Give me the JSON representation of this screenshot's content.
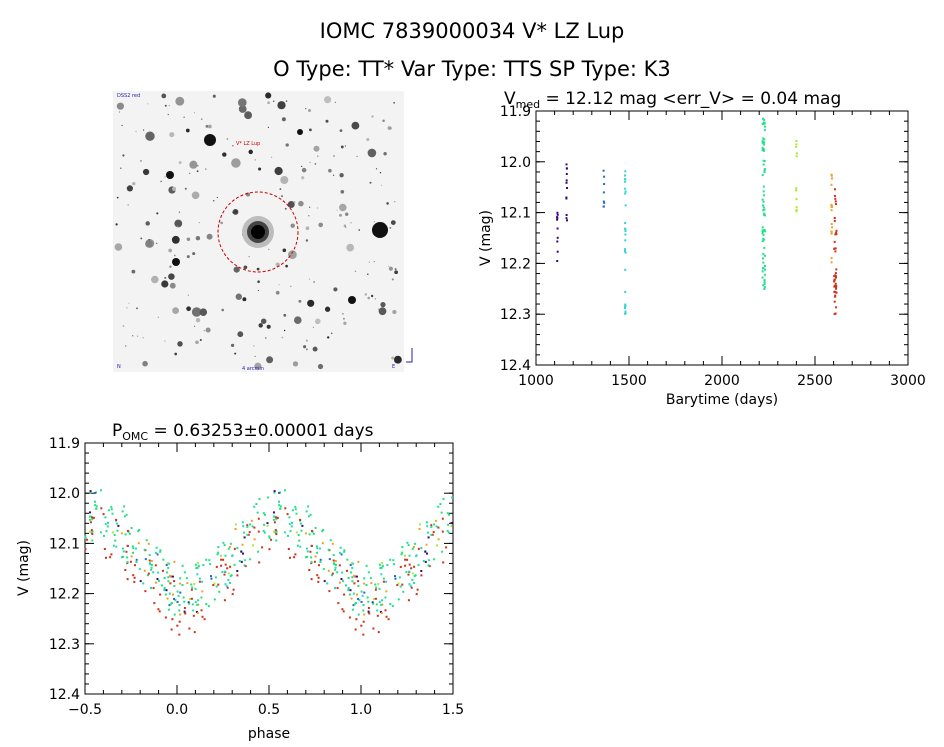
{
  "header": {
    "line1": "IOMC 7839000034   V* LZ Lup",
    "line2": "O Type: TT*  Var Type: TTS  SP Type: K3"
  },
  "sky_image": {
    "label_top_left": "DSS2 red",
    "label_target": "V* LZ Lup",
    "label_bottom_left": "N",
    "label_bottom_center": "4 arcmin",
    "label_bottom_right": "E",
    "circle_color": "#cc0000"
  },
  "series_colors": [
    "#3a0a7a",
    "#2a66c8",
    "#30d4d4",
    "#22e08a",
    "#a6ec30",
    "#f0a020",
    "#d03018"
  ],
  "chart_data": [
    {
      "type": "scatter",
      "title": "V",
      "title_sub": "med",
      "title_rest": " = 12.12 mag <err_V> = 0.04 mag",
      "xlabel": "Barytime (days)",
      "ylabel": "V (mag)",
      "xlim": [
        1000,
        3000
      ],
      "ylim": [
        12.4,
        11.9
      ],
      "y_inverted": true,
      "xticks": [
        "1000",
        "1500",
        "2000",
        "2500",
        "3000"
      ],
      "yticks": [
        "11.9",
        "12.0",
        "12.1",
        "12.2",
        "12.3",
        "12.4"
      ],
      "groups": [
        {
          "x": 1115,
          "ymin": 12.1,
          "ymax": 12.23,
          "n": 10,
          "color": "#3a0a7a"
        },
        {
          "x": 1165,
          "ymin": 11.97,
          "ymax": 12.12,
          "n": 12,
          "color": "#3a0a7a"
        },
        {
          "x": 1365,
          "ymin": 12.0,
          "ymax": 12.1,
          "n": 8,
          "color": "#2a66c8"
        },
        {
          "x": 1480,
          "ymin": 12.01,
          "ymax": 12.31,
          "n": 28,
          "color": "#30d4d4"
        },
        {
          "x": 2225,
          "ymin": 11.91,
          "ymax": 12.27,
          "n": 70,
          "color": "#22e08a"
        },
        {
          "x": 2400,
          "ymin": 11.94,
          "ymax": 12.1,
          "n": 12,
          "color": "#a6ec30"
        },
        {
          "x": 2590,
          "ymin": 12.01,
          "ymax": 12.2,
          "n": 16,
          "color": "#f0a020"
        },
        {
          "x": 2610,
          "ymin": 12.05,
          "ymax": 12.3,
          "n": 40,
          "color": "#d03018"
        }
      ]
    },
    {
      "type": "scatter",
      "title": "P",
      "title_sub": "OMC",
      "title_rest": " = 0.63253±0.00001 days",
      "xlabel": "phase",
      "ylabel": "V (mag)",
      "xlim": [
        -0.5,
        1.5
      ],
      "ylim": [
        12.4,
        11.9
      ],
      "y_inverted": true,
      "xticks": [
        "−0.5",
        "0.0",
        "0.5",
        "1.0",
        "1.5"
      ],
      "yticks": [
        "11.9",
        "12.0",
        "12.1",
        "12.2",
        "12.3",
        "12.4"
      ],
      "period_days": 0.63253,
      "curve": {
        "mean": 12.12,
        "amplitude": 0.075,
        "phase_of_max": 0.55
      }
    }
  ]
}
